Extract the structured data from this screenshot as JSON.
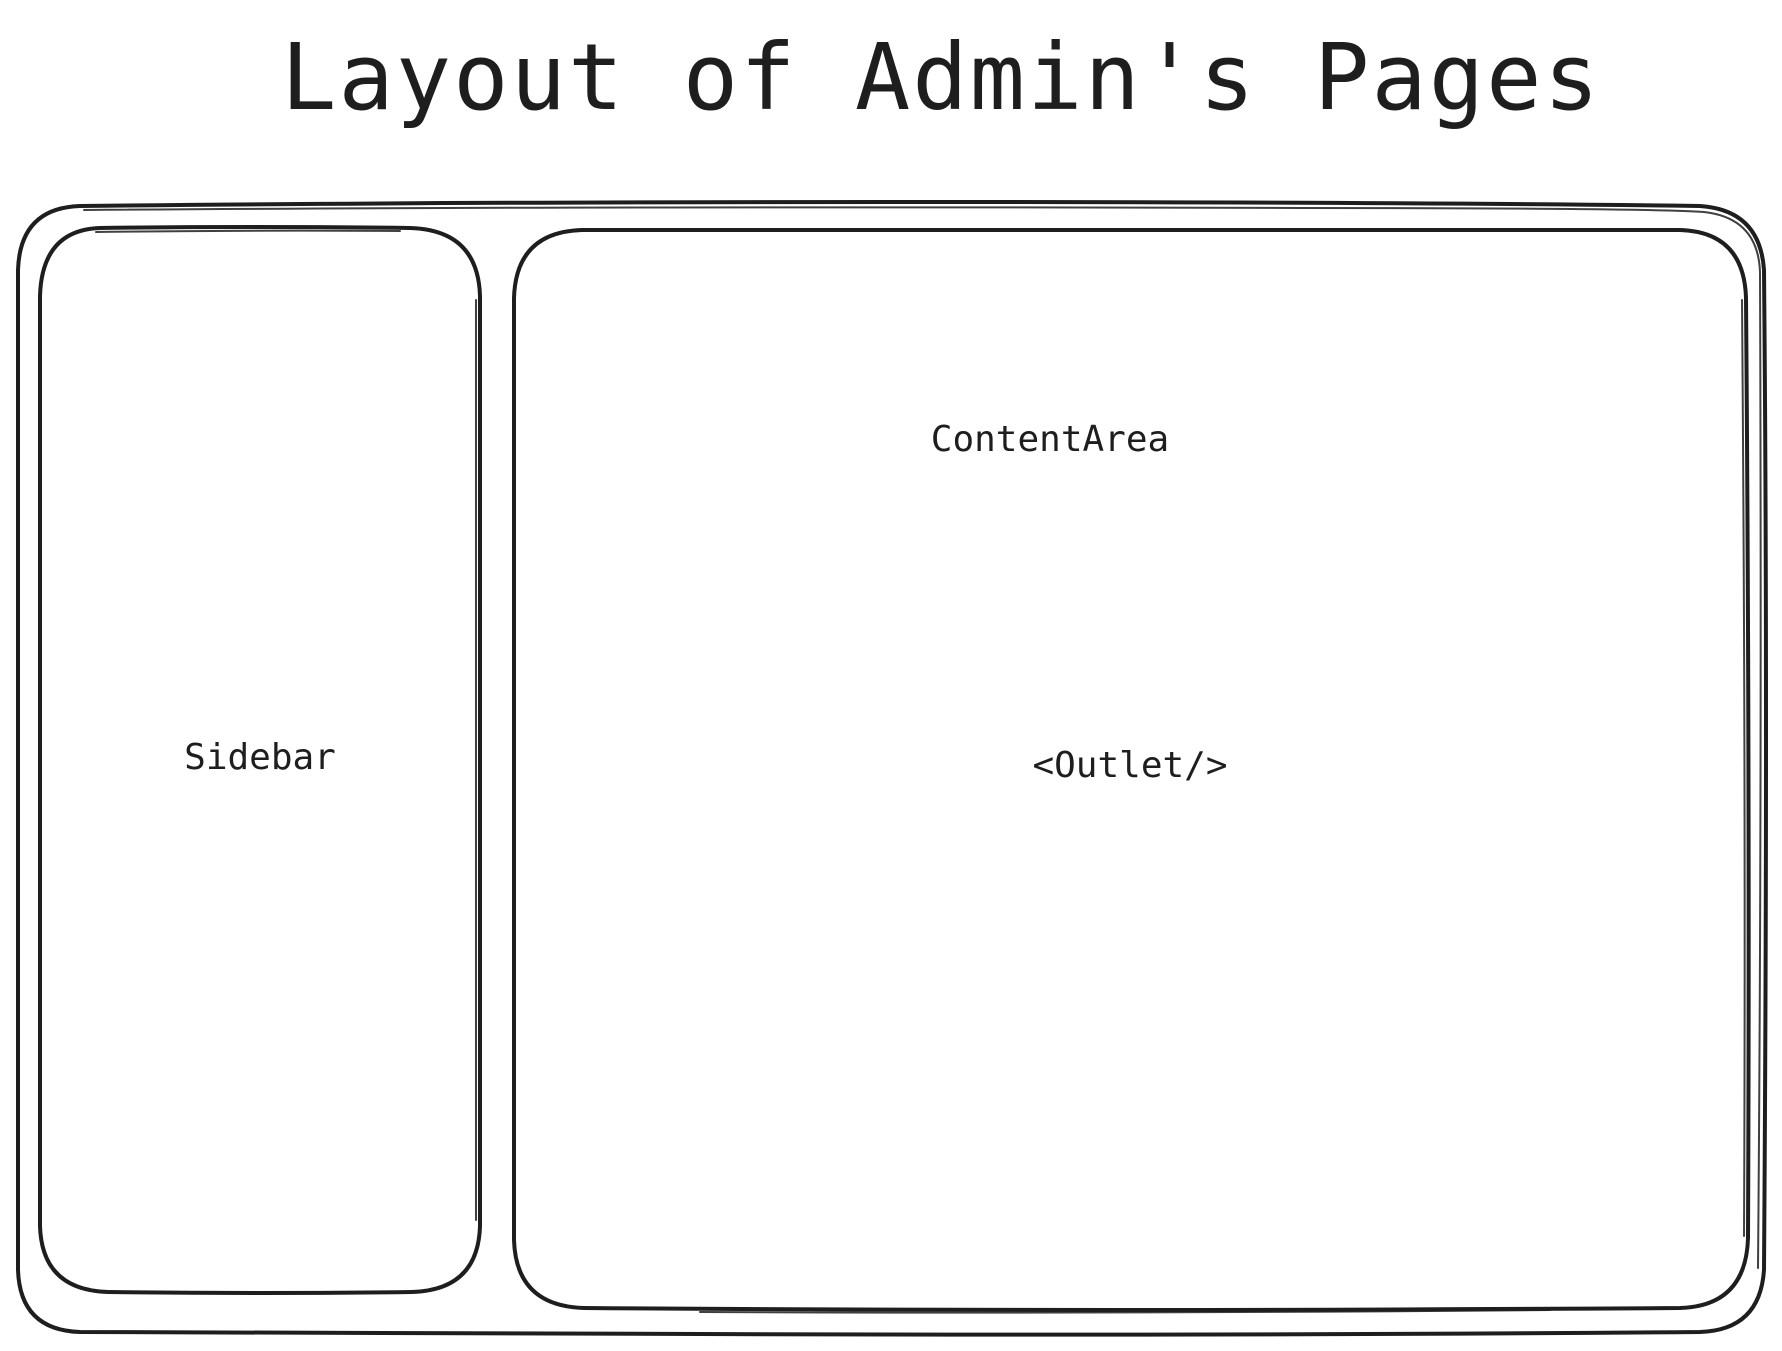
{
  "diagram": {
    "title": "Layout of Admin's Pages",
    "boxes": {
      "outer": {
        "label": ""
      },
      "sidebar": {
        "label": "Sidebar"
      },
      "content": {
        "label": "ContentArea",
        "inner_label": "<Outlet/>"
      }
    },
    "stroke_color": "#1e1e1e",
    "background_color": "#ffffff"
  }
}
